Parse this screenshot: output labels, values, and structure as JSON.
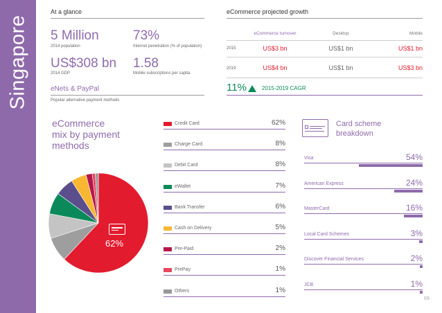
{
  "country": "Singapore",
  "glance": {
    "title": "At a glance",
    "stats": [
      {
        "value": "5 Million",
        "label": "2014 population"
      },
      {
        "value": "73%",
        "label": "Internet penetration (% of population)"
      },
      {
        "value": "US$308 bn",
        "label": "2014 GDP"
      },
      {
        "value": "1.58",
        "label": "Mobile subscriptions per capita"
      }
    ],
    "payment_methods": {
      "value": "eNets & PayPal",
      "label": "Popular alternative payment methods"
    }
  },
  "growth": {
    "title": "eCommerce projected growth",
    "headers": [
      "eCommerce turnover",
      "Desktop",
      "Mobile"
    ],
    "rows": [
      {
        "year": "2015",
        "turnover": "US$3 bn",
        "desktop": "US$1 bn",
        "mobile": "US$1 bn"
      },
      {
        "year": "2019",
        "turnover": "US$4 bn",
        "desktop": "US$1 bn",
        "mobile": "US$3 bn"
      }
    ],
    "cagr_value": "11%",
    "cagr_label": "2015-2019 CAGR"
  },
  "mix": {
    "title_line1": "eCommerce",
    "title_line2": "mix by payment",
    "title_line3": "methods",
    "pie_label": "62%"
  },
  "chart_data": {
    "type": "pie",
    "title": "eCommerce mix by payment methods",
    "categories": [
      "Credit Card",
      "Charge Card",
      "Debit Card",
      "eWallet",
      "Bank Transfer",
      "Cash on Delivery",
      "Pre-Paid",
      "PrePay",
      "Others"
    ],
    "values": [
      62,
      8,
      8,
      7,
      6,
      5,
      2,
      1,
      1
    ],
    "value_labels": [
      "62%",
      "8%",
      "8%",
      "7%",
      "6%",
      "5%",
      "2%",
      "1%",
      "1%"
    ],
    "colors": [
      "#e31b2e",
      "#9e9e9e",
      "#c4c4c4",
      "#0a8a5a",
      "#5b4e8c",
      "#f7b733",
      "#b5174b",
      "#e8465f",
      "#999999"
    ]
  },
  "schemes": {
    "title_line1": "Card scheme",
    "title_line2": "breakdown",
    "items": [
      {
        "label": "Visa",
        "pct_label": "54%",
        "value": 54
      },
      {
        "label": "American Express",
        "pct_label": "24%",
        "value": 24
      },
      {
        "label": "MasterCard",
        "pct_label": "16%",
        "value": 16
      },
      {
        "label": "Local Card Schemes",
        "pct_label": "3%",
        "value": 3
      },
      {
        "label": "Discover Financial Services",
        "pct_label": "2%",
        "value": 2
      },
      {
        "label": "JCB",
        "pct_label": "1%",
        "value": 1
      }
    ]
  },
  "page_number": "69",
  "accent_color": "#8e6aab"
}
